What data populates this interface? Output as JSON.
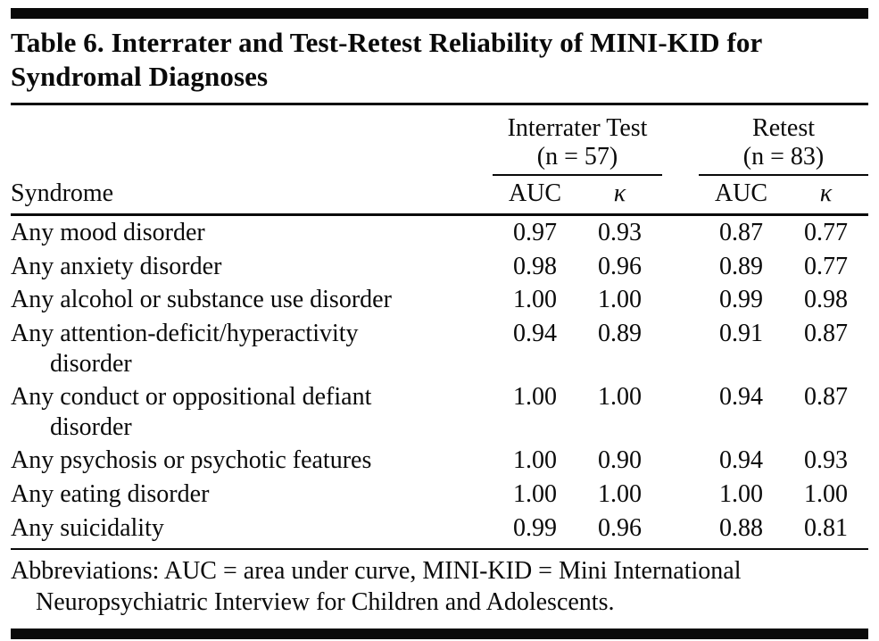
{
  "page": {
    "title": "Table 6. Interrater and Test-Retest Reliability of MINI-KID for Syndromal Diagnoses"
  },
  "table": {
    "syndrome_header": "Syndrome",
    "groups": [
      {
        "label": "Interrater Test",
        "n": "(n = 57)",
        "col1": "AUC",
        "col2": "κ"
      },
      {
        "label": "Retest",
        "n": "(n = 83)",
        "col1": "AUC",
        "col2": "κ"
      }
    ],
    "rows": [
      {
        "label": "Any mood disorder",
        "label2": "",
        "values": [
          "0.97",
          "0.93",
          "0.87",
          "0.77"
        ]
      },
      {
        "label": "Any anxiety disorder",
        "label2": "",
        "values": [
          "0.98",
          "0.96",
          "0.89",
          "0.77"
        ]
      },
      {
        "label": "Any alcohol or substance use disorder",
        "label2": "",
        "values": [
          "1.00",
          "1.00",
          "0.99",
          "0.98"
        ]
      },
      {
        "label": "Any attention-deficit/hyperactivity",
        "label2": "disorder",
        "values": [
          "0.94",
          "0.89",
          "0.91",
          "0.87"
        ]
      },
      {
        "label": "Any conduct or oppositional defiant",
        "label2": "disorder",
        "values": [
          "1.00",
          "1.00",
          "0.94",
          "0.87"
        ]
      },
      {
        "label": "Any psychosis or psychotic features",
        "label2": "",
        "values": [
          "1.00",
          "0.90",
          "0.94",
          "0.93"
        ]
      },
      {
        "label": "Any eating disorder",
        "label2": "",
        "values": [
          "1.00",
          "1.00",
          "1.00",
          "1.00"
        ]
      },
      {
        "label": "Any suicidality",
        "label2": "",
        "values": [
          "0.99",
          "0.96",
          "0.88",
          "0.81"
        ]
      }
    ],
    "footnote_line1": "Abbreviations: AUC = area under curve, MINI-KID = Mini International",
    "footnote_line2": "Neuropsychiatric Interview for Children and Adolescents."
  }
}
